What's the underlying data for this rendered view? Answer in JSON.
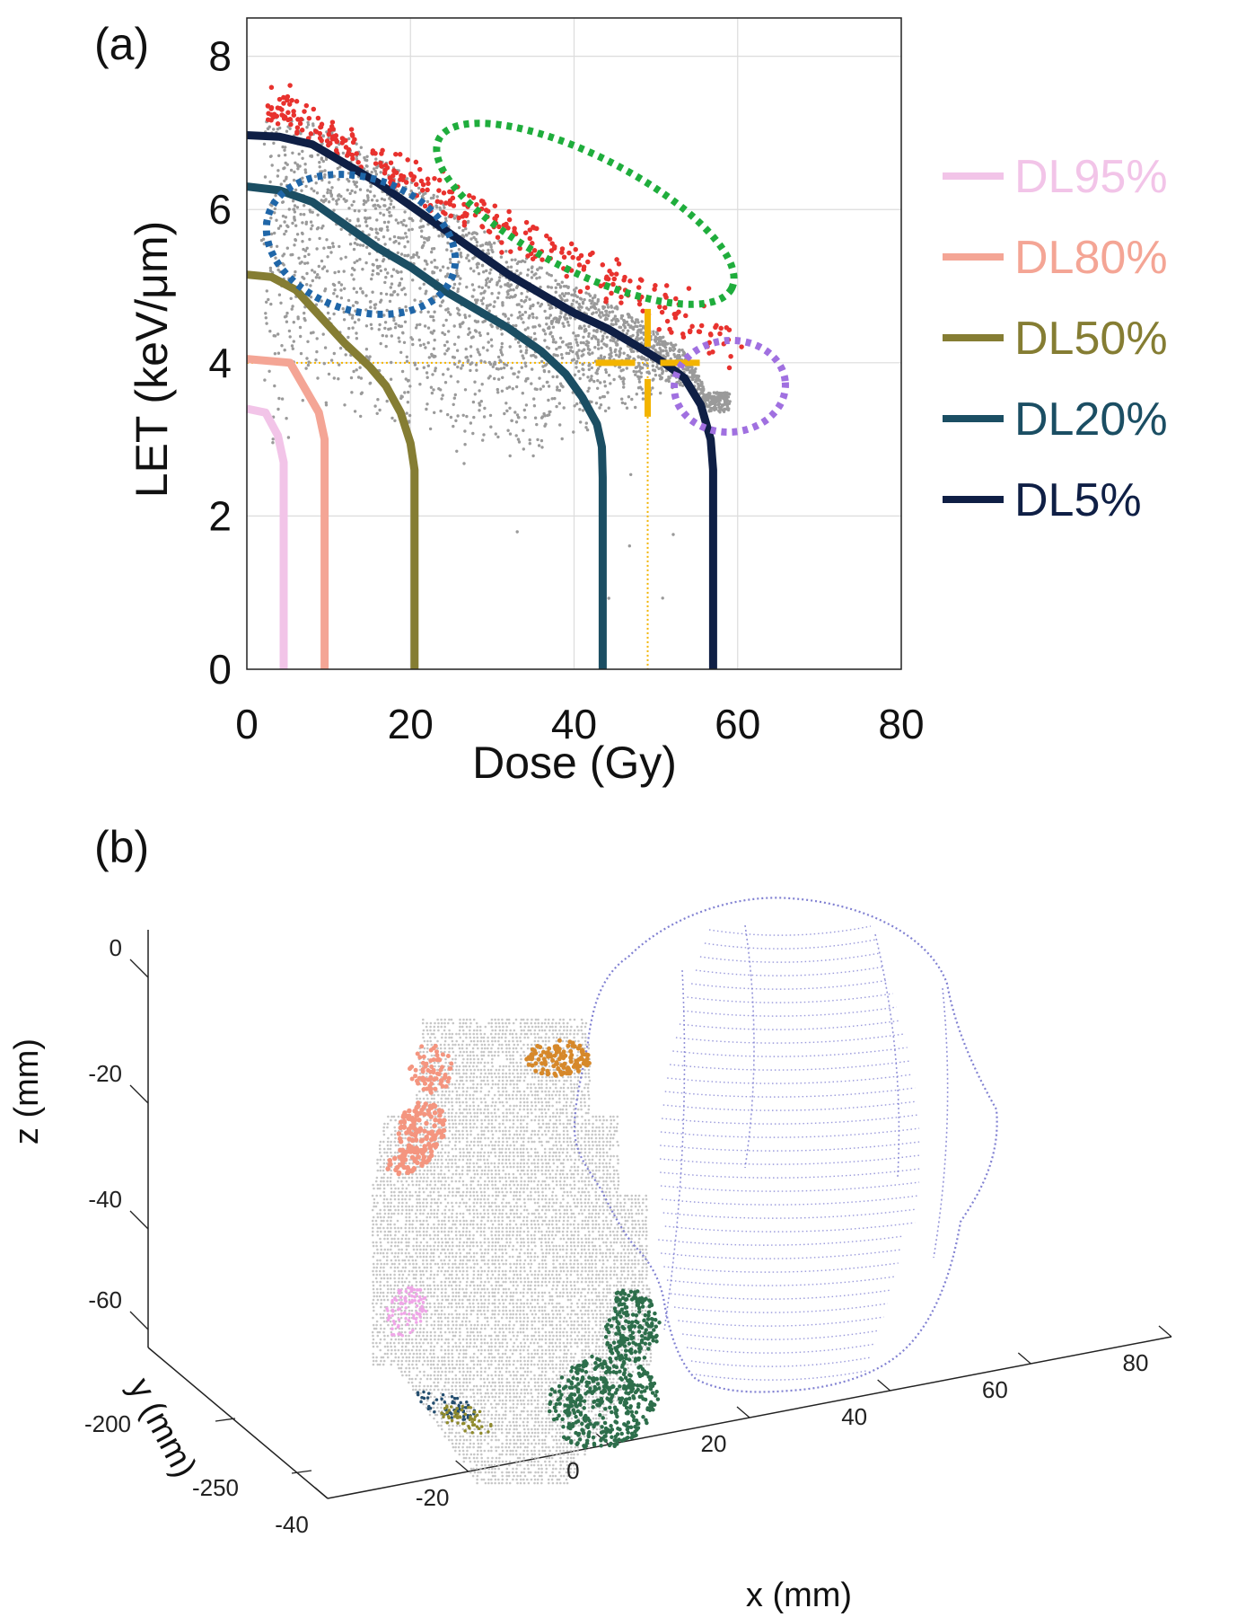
{
  "chart_data": [
    {
      "panel_label": "(a)",
      "type": "scatter",
      "xlabel": "Dose (Gy)",
      "ylabel": "LET (keV/μm)",
      "xlim": [
        0,
        80
      ],
      "ylim": [
        0,
        8.5
      ],
      "xticks": [
        0,
        20,
        40,
        60,
        80
      ],
      "yticks": [
        0,
        2,
        4,
        6,
        8
      ],
      "grid": true,
      "legend_position": "right",
      "threshold_lines": {
        "dose": 49,
        "let": 4.0
      },
      "series": [
        {
          "name": "DL95%",
          "color": "#f2c4e8",
          "corner_dose": 4.5,
          "plateau_let": 3.4,
          "knee": [
            3.8,
            2.7
          ]
        },
        {
          "name": "DL80%",
          "color": "#f4a595",
          "corner_dose": 9.5,
          "plateau_let": 4.05,
          "knee": [
            8.8,
            3.0
          ]
        },
        {
          "name": "DL50%",
          "color": "#857d33",
          "corner_dose": 20.5,
          "plateau_let": 5.15,
          "curve": [
            [
              0,
              5.15
            ],
            [
              3,
              5.12
            ],
            [
              6,
              4.95
            ],
            [
              9,
              4.6
            ],
            [
              12,
              4.25
            ],
            [
              15,
              3.95
            ],
            [
              17,
              3.7
            ],
            [
              18.8,
              3.35
            ],
            [
              20,
              2.95
            ],
            [
              20.5,
              2.6
            ],
            [
              20.5,
              0
            ]
          ]
        },
        {
          "name": "DL20%",
          "color": "#1b4e63",
          "corner_dose": 43.5,
          "plateau_let": 6.3,
          "curve": [
            [
              0,
              6.3
            ],
            [
              4,
              6.25
            ],
            [
              8,
              6.1
            ],
            [
              12,
              5.8
            ],
            [
              16,
              5.5
            ],
            [
              20,
              5.25
            ],
            [
              24,
              4.95
            ],
            [
              28,
              4.7
            ],
            [
              32,
              4.45
            ],
            [
              36,
              4.15
            ],
            [
              39,
              3.85
            ],
            [
              41,
              3.55
            ],
            [
              42.8,
              3.2
            ],
            [
              43.4,
              2.9
            ],
            [
              43.5,
              2.5
            ],
            [
              43.5,
              0
            ]
          ]
        },
        {
          "name": "DL5%",
          "color": "#0f1f45",
          "corner_dose": 57,
          "plateau_let": 6.97,
          "curve": [
            [
              0,
              6.97
            ],
            [
              4,
              6.95
            ],
            [
              8,
              6.85
            ],
            [
              12,
              6.6
            ],
            [
              16,
              6.35
            ],
            [
              20,
              6.05
            ],
            [
              24,
              5.75
            ],
            [
              28,
              5.45
            ],
            [
              32,
              5.15
            ],
            [
              36,
              4.9
            ],
            [
              40,
              4.65
            ],
            [
              44,
              4.45
            ],
            [
              48,
              4.2
            ],
            [
              51,
              4.0
            ],
            [
              53.5,
              3.8
            ],
            [
              55.5,
              3.45
            ],
            [
              56.7,
              3.0
            ],
            [
              57,
              2.6
            ],
            [
              57,
              0
            ]
          ]
        }
      ],
      "scatter_clouds": [
        {
          "name": "gray voxels",
          "color": "#9a9a9a"
        },
        {
          "name": "high-LET voxels",
          "color": "#e8322e"
        }
      ],
      "highlight_ellipses": [
        {
          "color": "#1f66a8",
          "style": "dotted",
          "center": [
            14,
            5.5
          ],
          "region": "low dose, LET ~5-6.3"
        },
        {
          "color": "#1fad3c",
          "style": "dotted",
          "center": [
            39,
            5.7
          ],
          "region": "dose 22-58, LET ~4.8-7"
        },
        {
          "color": "#a070e0",
          "style": "dotted",
          "center": [
            57,
            3.7
          ],
          "region": "dose 51-66, LET ~3-4.6"
        }
      ],
      "legend": [
        "DL95%",
        "DL80%",
        "DL50%",
        "DL20%",
        "DL5%"
      ]
    },
    {
      "panel_label": "(b)",
      "type": "scatter3d",
      "xlabel": "x (mm)",
      "ylabel": "y (mm)",
      "zlabel": "z (mm)",
      "xticks": [
        -40,
        -20,
        0,
        20,
        40,
        60,
        80
      ],
      "yticks": [
        -200,
        -250
      ],
      "zticks": [
        0,
        -20,
        -40,
        -60
      ],
      "structures": [
        {
          "name": "gray voxel volume",
          "color": "#b9b9b9"
        },
        {
          "name": "outlined organ",
          "color": "#7a7ad0"
        },
        {
          "name": "orange cluster",
          "color": "#d6882a"
        },
        {
          "name": "salmon cluster",
          "color": "#f4957f"
        },
        {
          "name": "pink cluster",
          "color": "#f0a6e8"
        },
        {
          "name": "green cluster",
          "color": "#2d6e4b"
        },
        {
          "name": "blue/olive cluster",
          "color": "#244e6f"
        }
      ]
    }
  ]
}
